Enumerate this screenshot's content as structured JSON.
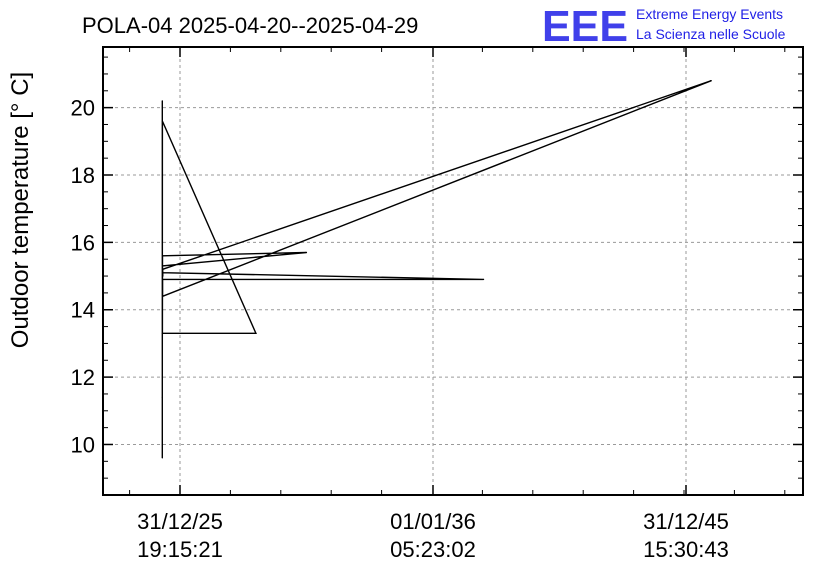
{
  "title": "POLA-04 2025-04-20--2025-04-29",
  "logo": {
    "mark": "EEE",
    "line1": "Extreme Energy Events",
    "line2": "La Scienza nelle Scuole",
    "color": "#1f1fe6"
  },
  "chart_data": {
    "type": "line",
    "title": "POLA-04 2025-04-20--2025-04-29",
    "xlabel": "",
    "ylabel": "Outdoor temperature [° C]",
    "yticks": [
      10,
      12,
      14,
      16,
      18,
      20
    ],
    "ylim": [
      8.5,
      21.8
    ],
    "xticks": [
      {
        "date": "31/12/25",
        "time": "19:15:21"
      },
      {
        "date": "01/01/36",
        "time": "05:23:02"
      },
      {
        "date": "31/12/45",
        "time": "15:30:43"
      }
    ],
    "grid": true,
    "series": [
      {
        "points": [
          {
            "x": "2025-04-20T00:00:00",
            "y": 9.6
          },
          {
            "x": "2025-04-20T06:00:00",
            "y": 20.2
          },
          {
            "x": "2025-04-20T12:00:00",
            "y": 11.4
          },
          {
            "x": "2025-04-21T00:00:00",
            "y": 19.6
          },
          {
            "x": "2029-01-01T00:00:00",
            "y": 13.3
          },
          {
            "x": "2025-04-22T00:00:00",
            "y": 13.3
          },
          {
            "x": "2025-04-22T12:00:00",
            "y": 15.6
          },
          {
            "x": "2031-01-01T00:00:00",
            "y": 15.7
          },
          {
            "x": "2025-04-23T00:00:00",
            "y": 15.3
          },
          {
            "x": "2025-04-23T12:00:00",
            "y": 15.1
          },
          {
            "x": "2038-01-01T00:00:00",
            "y": 14.9
          },
          {
            "x": "2025-04-24T00:00:00",
            "y": 14.9
          },
          {
            "x": "2025-04-25T00:00:00",
            "y": 14.4
          },
          {
            "x": "2047-01-01T00:00:00",
            "y": 20.8
          },
          {
            "x": "2025-04-26T00:00:00",
            "y": 15.2
          },
          {
            "x": "2025-04-27T00:00:00",
            "y": 15.0
          }
        ]
      }
    ]
  }
}
